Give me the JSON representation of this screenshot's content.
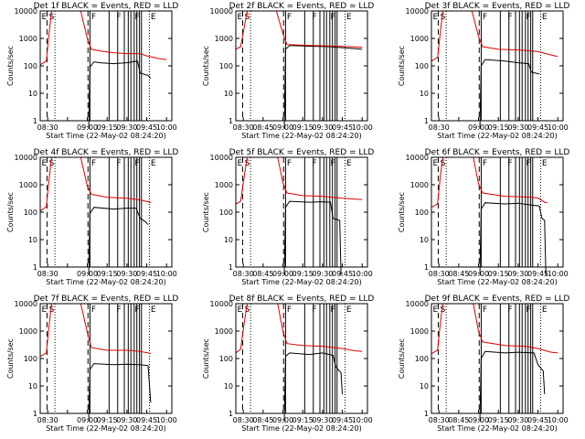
{
  "colors": {
    "events": "#000000",
    "lld": "#e00000",
    "background": "#ffffff"
  },
  "shared": {
    "xlabel": "Start Time (22-May-02 08:24:20)",
    "ylabel": "Counts/sec",
    "y_ticks": [
      "1",
      "10",
      "100",
      "1000",
      "10000"
    ],
    "x_ticks": [
      "08:30",
      "08:45",
      "09:00",
      "09:15",
      "09:30",
      "09:45",
      "10:00"
    ],
    "y_scale": "log",
    "ylim": [
      1,
      10000
    ],
    "xlim": [
      "08:24:20",
      "10:04:00"
    ]
  },
  "chart_data": [
    {
      "type": "line",
      "title": "Det 1f BLACK = Events, RED = LLD",
      "x_ticks_visible": [
        0,
        2,
        3,
        4,
        5,
        6
      ],
      "event_labels": [
        "E",
        "S",
        "F",
        "F",
        "F",
        "E"
      ],
      "series": [
        {
          "name": "Events",
          "color": "#000000",
          "points": [
            [
              "09:01",
              0.1
            ],
            [
              "09:02",
              90
            ],
            [
              "09:05",
              140
            ],
            [
              "09:10",
              130
            ],
            [
              "09:20",
              120
            ],
            [
              "09:30",
              130
            ],
            [
              "09:38",
              150
            ],
            [
              "09:40",
              55
            ],
            [
              "09:46",
              45
            ],
            [
              "09:48",
              35
            ]
          ]
        },
        {
          "name": "LLD",
          "color": "#e00000",
          "points": [
            [
              "08:24:20",
              110
            ],
            [
              "08:29",
              150
            ],
            [
              "08:31",
              1500
            ],
            [
              "08:33",
              10000
            ],
            [
              "08:55",
              10000
            ],
            [
              "09:00",
              1000
            ],
            [
              "09:03",
              400
            ],
            [
              "09:10",
              350
            ],
            [
              "09:20",
              300
            ],
            [
              "09:30",
              280
            ],
            [
              "09:40",
              280
            ],
            [
              "09:45",
              230
            ],
            [
              "09:55",
              180
            ],
            [
              "10:00",
              170
            ]
          ]
        }
      ]
    },
    {
      "type": "line",
      "title": "Det 2f BLACK = Events, RED = LLD",
      "x_ticks_visible": [
        0,
        1,
        2,
        3,
        4,
        5,
        6
      ],
      "event_labels": [
        "E",
        "S",
        "F",
        "F",
        "F",
        "E"
      ],
      "series": [
        {
          "name": "Events",
          "color": "#000000",
          "points": [
            [
              "09:01",
              0.1
            ],
            [
              "09:02",
              400
            ],
            [
              "09:05",
              550
            ],
            [
              "09:20",
              520
            ],
            [
              "09:35",
              500
            ],
            [
              "09:40",
              480
            ],
            [
              "09:45",
              460
            ],
            [
              "09:55",
              420
            ],
            [
              "10:00",
              400
            ]
          ]
        },
        {
          "name": "LLD",
          "color": "#e00000",
          "points": [
            [
              "08:24:20",
              400
            ],
            [
              "08:28",
              500
            ],
            [
              "08:31",
              3000
            ],
            [
              "08:33",
              10000
            ],
            [
              "08:55",
              10000
            ],
            [
              "09:00",
              1500
            ],
            [
              "09:03",
              600
            ],
            [
              "09:20",
              560
            ],
            [
              "09:40",
              520
            ],
            [
              "10:00",
              480
            ]
          ]
        }
      ]
    },
    {
      "type": "line",
      "title": "Det 3f BLACK = Events, RED = LLD",
      "x_ticks_visible": [
        0,
        2,
        3,
        4,
        5,
        6
      ],
      "event_labels": [
        "E",
        "S",
        "F",
        "F",
        "F",
        "E"
      ],
      "series": [
        {
          "name": "Events",
          "color": "#000000",
          "points": [
            [
              "09:01",
              0.1
            ],
            [
              "09:02",
              100
            ],
            [
              "09:05",
              170
            ],
            [
              "09:20",
              150
            ],
            [
              "09:30",
              130
            ],
            [
              "09:38",
              120
            ],
            [
              "09:40",
              60
            ],
            [
              "09:46",
              50
            ]
          ]
        },
        {
          "name": "LLD",
          "color": "#e00000",
          "points": [
            [
              "08:24:20",
              150
            ],
            [
              "08:29",
              200
            ],
            [
              "08:31",
              1500
            ],
            [
              "08:33",
              10000
            ],
            [
              "08:55",
              10000
            ],
            [
              "09:00",
              1200
            ],
            [
              "09:03",
              500
            ],
            [
              "09:15",
              400
            ],
            [
              "09:30",
              380
            ],
            [
              "09:45",
              330
            ],
            [
              "09:55",
              250
            ],
            [
              "10:00",
              220
            ]
          ]
        }
      ]
    },
    {
      "type": "line",
      "title": "Det 4f BLACK = Events, RED = LLD",
      "x_ticks_visible": [
        0,
        2,
        3,
        4,
        5,
        6
      ],
      "event_labels": [
        "E",
        "S",
        "F",
        "F",
        "F",
        "E"
      ],
      "series": [
        {
          "name": "Events",
          "color": "#000000",
          "points": [
            [
              "09:01",
              0.1
            ],
            [
              "09:02",
              90
            ],
            [
              "09:05",
              150
            ],
            [
              "09:20",
              130
            ],
            [
              "09:30",
              140
            ],
            [
              "09:37",
              140
            ],
            [
              "09:40",
              60
            ],
            [
              "09:44",
              45
            ],
            [
              "09:46",
              35
            ]
          ]
        },
        {
          "name": "LLD",
          "color": "#e00000",
          "points": [
            [
              "08:24:20",
              110
            ],
            [
              "08:29",
              160
            ],
            [
              "08:31",
              1500
            ],
            [
              "08:33",
              10000
            ],
            [
              "08:55",
              10000
            ],
            [
              "09:00",
              900
            ],
            [
              "09:03",
              450
            ],
            [
              "09:15",
              350
            ],
            [
              "09:30",
              320
            ],
            [
              "09:40",
              280
            ],
            [
              "09:46",
              240
            ],
            [
              "09:48",
              220
            ]
          ]
        }
      ]
    },
    {
      "type": "line",
      "title": "Det 5f BLACK = Events, RED = LLD",
      "x_ticks_visible": [
        0,
        1,
        2,
        3,
        4,
        5,
        6
      ],
      "event_labels": [
        "E",
        "S",
        "F",
        "F",
        "F",
        "E"
      ],
      "series": [
        {
          "name": "Events",
          "color": "#000000",
          "points": [
            [
              "09:01",
              0.1
            ],
            [
              "09:02",
              150
            ],
            [
              "09:05",
              250
            ],
            [
              "09:20",
              230
            ],
            [
              "09:30",
              240
            ],
            [
              "09:36",
              230
            ],
            [
              "09:38",
              60
            ],
            [
              "09:43",
              50
            ],
            [
              "09:44",
              0.5
            ]
          ]
        },
        {
          "name": "LLD",
          "color": "#e00000",
          "points": [
            [
              "08:24:20",
              200
            ],
            [
              "08:28",
              250
            ],
            [
              "08:31",
              2500
            ],
            [
              "08:33",
              10000
            ],
            [
              "08:56",
              10000
            ],
            [
              "09:00",
              1200
            ],
            [
              "09:03",
              500
            ],
            [
              "09:15",
              400
            ],
            [
              "09:30",
              380
            ],
            [
              "09:45",
              320
            ],
            [
              "09:55",
              300
            ],
            [
              "10:00",
              290
            ]
          ]
        }
      ]
    },
    {
      "type": "line",
      "title": "Det 6f BLACK = Events, RED = LLD",
      "x_ticks_visible": [
        0,
        1,
        2,
        3,
        4,
        5,
        6
      ],
      "event_labels": [
        "E",
        "S",
        "F",
        "F",
        "F",
        "E"
      ],
      "series": [
        {
          "name": "Events",
          "color": "#000000",
          "points": [
            [
              "09:01",
              0.1
            ],
            [
              "09:02",
              130
            ],
            [
              "09:05",
              220
            ],
            [
              "09:20",
              200
            ],
            [
              "09:30",
              210
            ],
            [
              "09:40",
              180
            ],
            [
              "09:46",
              170
            ],
            [
              "09:48",
              60
            ],
            [
              "09:50",
              50
            ],
            [
              "09:51",
              0.5
            ]
          ]
        },
        {
          "name": "LLD",
          "color": "#e00000",
          "points": [
            [
              "08:24:20",
              150
            ],
            [
              "08:29",
              200
            ],
            [
              "08:31",
              1800
            ],
            [
              "08:33",
              10000
            ],
            [
              "08:56",
              10000
            ],
            [
              "09:00",
              1100
            ],
            [
              "09:03",
              500
            ],
            [
              "09:20",
              380
            ],
            [
              "09:35",
              360
            ],
            [
              "09:45",
              330
            ],
            [
              "09:50",
              230
            ],
            [
              "09:52",
              220
            ]
          ]
        }
      ]
    },
    {
      "type": "line",
      "title": "Det 7f BLACK = Events, RED = LLD",
      "x_ticks_visible": [
        0,
        2,
        3,
        4,
        5,
        6
      ],
      "event_labels": [
        "E",
        "S",
        "F",
        "F",
        "F",
        "E"
      ],
      "series": [
        {
          "name": "Events",
          "color": "#000000",
          "points": [
            [
              "09:01",
              0.1
            ],
            [
              "09:02",
              40
            ],
            [
              "09:05",
              65
            ],
            [
              "09:20",
              60
            ],
            [
              "09:30",
              62
            ],
            [
              "09:40",
              60
            ],
            [
              "09:46",
              55
            ],
            [
              "09:48",
              2.5
            ]
          ]
        },
        {
          "name": "LLD",
          "color": "#e00000",
          "points": [
            [
              "08:24:20",
              120
            ],
            [
              "08:29",
              160
            ],
            [
              "08:31",
              1500
            ],
            [
              "08:33",
              10000
            ],
            [
              "08:55",
              10000
            ],
            [
              "09:00",
              900
            ],
            [
              "09:03",
              250
            ],
            [
              "09:15",
              200
            ],
            [
              "09:30",
              200
            ],
            [
              "09:40",
              180
            ],
            [
              "09:46",
              160
            ],
            [
              "09:48",
              150
            ]
          ]
        }
      ]
    },
    {
      "type": "line",
      "title": "Det 8f BLACK = Events, RED = LLD",
      "x_ticks_visible": [
        0,
        1,
        2,
        3,
        4,
        5,
        6
      ],
      "event_labels": [
        "E",
        "S",
        "F",
        "F",
        "F",
        "E"
      ],
      "series": [
        {
          "name": "Events",
          "color": "#000000",
          "points": [
            [
              "09:01",
              0.1
            ],
            [
              "09:02",
              120
            ],
            [
              "09:05",
              160
            ],
            [
              "09:20",
              140
            ],
            [
              "09:30",
              160
            ],
            [
              "09:38",
              130
            ],
            [
              "09:40",
              50
            ],
            [
              "09:44",
              30
            ],
            [
              "09:45",
              5
            ]
          ]
        },
        {
          "name": "LLD",
          "color": "#e00000",
          "points": [
            [
              "08:24:20",
              160
            ],
            [
              "08:28",
              220
            ],
            [
              "08:31",
              2500
            ],
            [
              "08:33",
              10000
            ],
            [
              "08:56",
              10000
            ],
            [
              "09:00",
              1000
            ],
            [
              "09:03",
              350
            ],
            [
              "09:15",
              300
            ],
            [
              "09:30",
              280
            ],
            [
              "09:45",
              230
            ],
            [
              "09:55",
              190
            ],
            [
              "10:00",
              180
            ]
          ]
        }
      ]
    },
    {
      "type": "line",
      "title": "Det 9f BLACK = Events, RED = LLD",
      "x_ticks_visible": [
        0,
        1,
        2,
        3,
        4,
        5,
        6
      ],
      "event_labels": [
        "E",
        "S",
        "F",
        "F",
        "F",
        "E"
      ],
      "series": [
        {
          "name": "Events",
          "color": "#000000",
          "points": [
            [
              "09:01",
              0.1
            ],
            [
              "09:02",
              100
            ],
            [
              "09:05",
              180
            ],
            [
              "09:20",
              160
            ],
            [
              "09:30",
              170
            ],
            [
              "09:42",
              160
            ],
            [
              "09:45",
              60
            ],
            [
              "09:49",
              35
            ],
            [
              "09:50",
              5
            ]
          ]
        },
        {
          "name": "LLD",
          "color": "#e00000",
          "points": [
            [
              "08:24:20",
              150
            ],
            [
              "08:29",
              200
            ],
            [
              "08:31",
              1800
            ],
            [
              "08:33",
              10000
            ],
            [
              "08:56",
              10000
            ],
            [
              "09:00",
              1000
            ],
            [
              "09:03",
              400
            ],
            [
              "09:20",
              300
            ],
            [
              "09:35",
              280
            ],
            [
              "09:45",
              230
            ],
            [
              "09:55",
              170
            ],
            [
              "10:00",
              160
            ]
          ]
        }
      ]
    }
  ],
  "markers": {
    "dashed": [
      "08:29:30",
      "09:00:30"
    ],
    "dotted": [
      "08:35:30",
      "09:47:00"
    ],
    "solid": [
      "09:02:00",
      "09:16:30",
      "09:23:00",
      "09:28:00",
      "09:31:00",
      "09:33:00",
      "09:35:30",
      "09:37:30",
      "09:39:30",
      "09:41:00"
    ]
  }
}
